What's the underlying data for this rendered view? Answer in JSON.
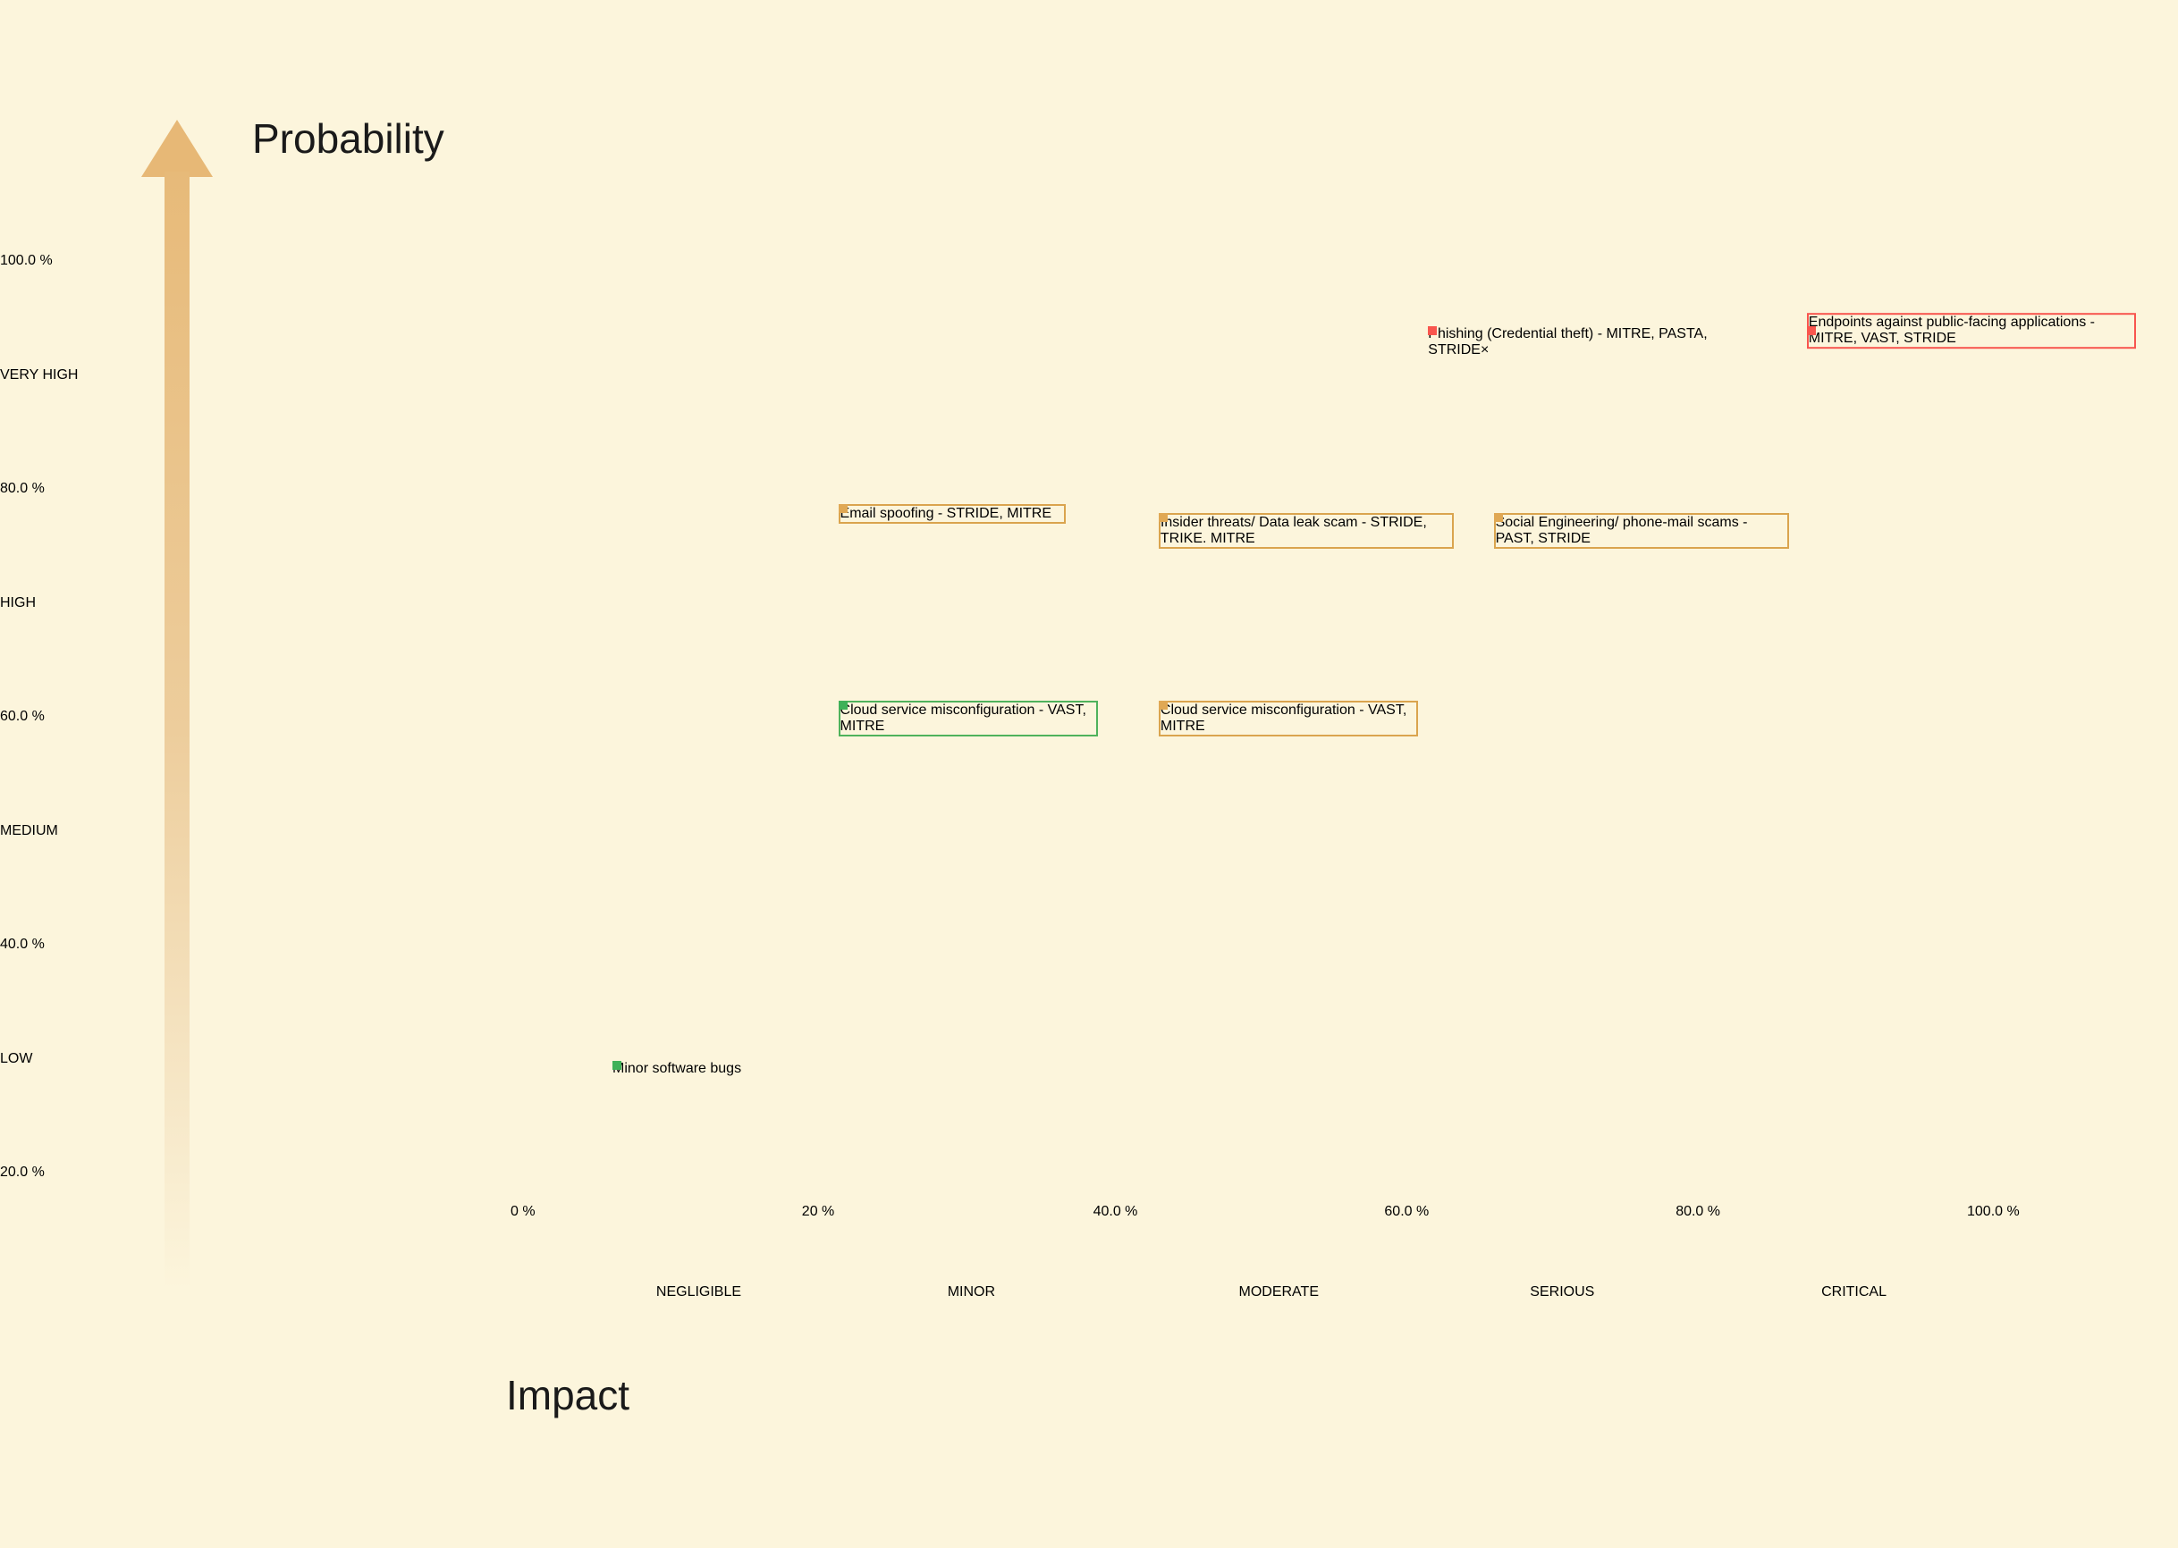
{
  "titles": {
    "y_axis": "Probability",
    "x_axis": "Impact"
  },
  "colors": {
    "background": "#FCF5DC",
    "cell_low": "#56BD62",
    "cell_medium": "#DCA95C",
    "cell_high": "#F94B49",
    "axis_level_text": "#A29584",
    "tick_text": "#1A1A1A",
    "box_text": "#1D1D1D",
    "box_background": "#FFFFFF",
    "arrow": "#E7BA79",
    "marker_red": "#F9564E",
    "marker_orange": "#E0A854",
    "marker_green": "#3FB158",
    "border_red": "#F8554E",
    "border_tan": "#DAA44E",
    "border_green": "#4FB25C",
    "close_icon": "#8A8A8A"
  },
  "y_axis": {
    "labels": [
      {
        "text": "100.0 %",
        "kind": "pct"
      },
      {
        "text": "VERY HIGH",
        "kind": "level"
      },
      {
        "text": "80.0 %",
        "kind": "pct"
      },
      {
        "text": "HIGH",
        "kind": "level"
      },
      {
        "text": "60.0 %",
        "kind": "pct"
      },
      {
        "text": "MEDIUM",
        "kind": "level"
      },
      {
        "text": "40.0 %",
        "kind": "pct"
      },
      {
        "text": "LOW",
        "kind": "level"
      },
      {
        "text": "20.0 %",
        "kind": "pct"
      }
    ]
  },
  "x_axis": {
    "ticks": [
      "0 %",
      "20 %",
      "40.0 %",
      "60.0 %",
      "80.0 %",
      "100.0 %"
    ],
    "categories": [
      "NEGLIGIBLE",
      "MINOR",
      "MODERATE",
      "SERIOUS",
      "CRITICAL"
    ]
  },
  "chart_data": {
    "type": "heatmap",
    "title": "Risk matrix: Probability vs Impact",
    "x_categories": [
      "NEGLIGIBLE",
      "MINOR",
      "MODERATE",
      "SERIOUS",
      "CRITICAL"
    ],
    "y_bands_top_to_bottom": [
      "80-100 % (VERY HIGH)",
      "60-80 % (HIGH)",
      "40-60 %",
      "20-40 % (MEDIUM)",
      "0-20 % (LOW)"
    ],
    "axis_ranges": {
      "x_pct": [
        0,
        100
      ],
      "y_pct": [
        0,
        100
      ]
    },
    "cell_matrix_top_to_bottom": [
      [
        "medium",
        "medium",
        "high",
        "high",
        "high"
      ],
      [
        "low",
        "medium",
        "medium",
        "high",
        "high"
      ],
      [
        "low",
        "low",
        "medium",
        "medium",
        "high"
      ],
      [
        "low",
        "low",
        "low",
        "medium",
        "medium"
      ],
      [
        "low",
        "low",
        "low",
        "low",
        "medium"
      ]
    ],
    "points": [
      {
        "id": "phishing",
        "label": "Phishing (Credential\ntheft) - MITRE, PASTA,\nSTRIDE",
        "impact_pct": 63,
        "probability_pct": 90,
        "marker": "red",
        "border": "none",
        "closable": true
      },
      {
        "id": "endpoints",
        "label": "Endpoints against\npublic-facing\napplications - MITRE,\nVAST, STRIDE",
        "impact_pct": 89,
        "probability_pct": 90,
        "marker": "red",
        "border": "red",
        "closable": false
      },
      {
        "id": "email-spoofing",
        "label": "Email spoofing -\nSTRIDE, MITRE",
        "impact_pct": 22.5,
        "probability_pct": 71,
        "marker": "orange",
        "border": "tan",
        "closable": false
      },
      {
        "id": "insider-threats",
        "label": "Insider threats/ Data\nleak scam - STRIDE,\nTRIKE. MITRE",
        "impact_pct": 44.5,
        "probability_pct": 70,
        "marker": "orange",
        "border": "tan",
        "closable": false
      },
      {
        "id": "social-engineering",
        "label": "Social Engineering/\nphone-mail scams -\nPAST, STRIDE",
        "impact_pct": 67.5,
        "probability_pct": 70,
        "marker": "orange",
        "border": "tan",
        "closable": false
      },
      {
        "id": "cloud-misconfig-minor",
        "label": "Cloud service\nmisconfiguration -\nVAST, MITRE",
        "impact_pct": 22.5,
        "probability_pct": 50,
        "marker": "green",
        "border": "green",
        "closable": false
      },
      {
        "id": "cloud-misconfig-moderate",
        "label": "Cloud service\nmisconfiguration -\nVAST, MITRE",
        "impact_pct": 44.5,
        "probability_pct": 50,
        "marker": "orange",
        "border": "tan",
        "closable": false
      },
      {
        "id": "minor-bugs",
        "label": "Minor\nsoftware bugs",
        "impact_pct": 7,
        "probability_pct": 11.5,
        "marker": "green",
        "border": "none",
        "closable": false
      }
    ],
    "close_label": "×",
    "legend_position": "none",
    "grid_lines": "gaps between cells"
  }
}
